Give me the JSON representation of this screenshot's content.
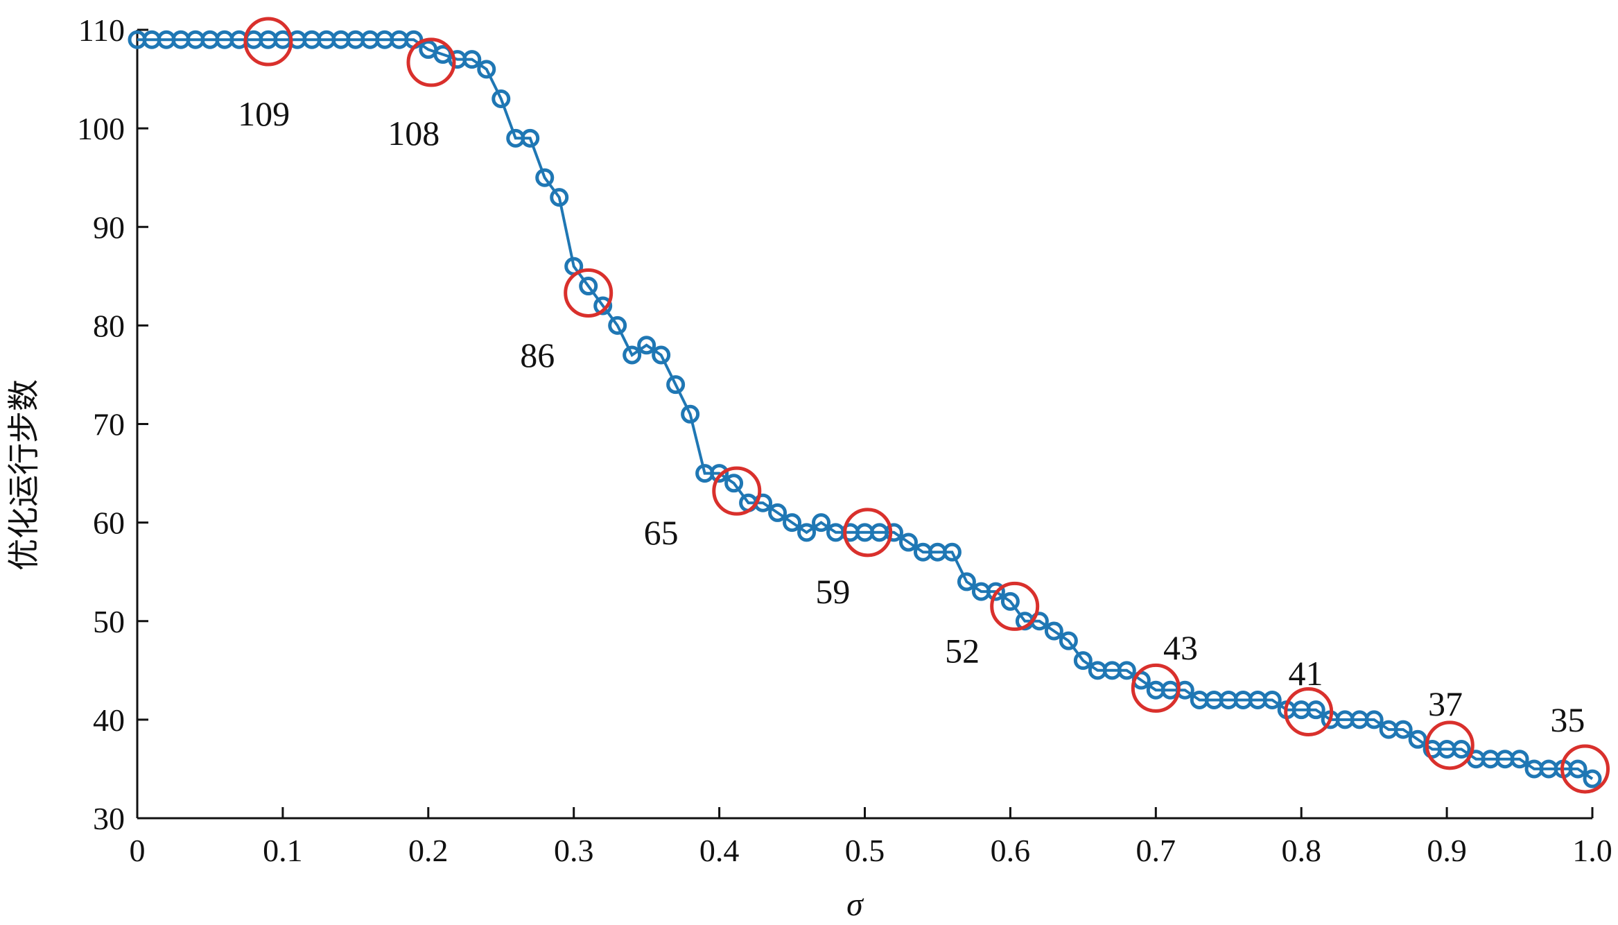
{
  "chart_data": {
    "type": "line",
    "xlabel": "σ",
    "ylabel": "优化运行步数",
    "xlim": [
      0,
      1.0
    ],
    "ylim": [
      30,
      110
    ],
    "xticks": [
      0,
      0.1,
      0.2,
      0.3,
      0.4,
      0.5,
      0.6,
      0.7,
      0.8,
      0.9,
      1.0
    ],
    "xtick_labels": [
      "0",
      "0.1",
      "0.2",
      "0.3",
      "0.4",
      "0.5",
      "0.6",
      "0.7",
      "0.8",
      "0.9",
      "1.0"
    ],
    "yticks": [
      30,
      40,
      50,
      60,
      70,
      80,
      90,
      100,
      110
    ],
    "ytick_labels": [
      "30",
      "40",
      "50",
      "60",
      "70",
      "80",
      "90",
      "100",
      "110"
    ],
    "grid": false,
    "series": [
      {
        "color": "#1f77b4",
        "marker": "circle",
        "x": [
          0,
          0.01,
          0.02,
          0.03,
          0.04,
          0.05,
          0.06,
          0.07,
          0.08,
          0.09,
          0.1,
          0.11,
          0.12,
          0.13,
          0.14,
          0.15,
          0.16,
          0.17,
          0.18,
          0.19,
          0.2,
          0.21,
          0.22,
          0.23,
          0.24,
          0.25,
          0.26,
          0.27,
          0.28,
          0.29,
          0.3,
          0.31,
          0.32,
          0.33,
          0.34,
          0.35,
          0.36,
          0.37,
          0.38,
          0.39,
          0.4,
          0.41,
          0.42,
          0.43,
          0.44,
          0.45,
          0.46,
          0.47,
          0.48,
          0.49,
          0.5,
          0.51,
          0.52,
          0.53,
          0.54,
          0.55,
          0.56,
          0.57,
          0.58,
          0.59,
          0.6,
          0.61,
          0.62,
          0.63,
          0.64,
          0.65,
          0.66,
          0.67,
          0.68,
          0.69,
          0.7,
          0.71,
          0.72,
          0.73,
          0.74,
          0.75,
          0.76,
          0.77,
          0.78,
          0.79,
          0.8,
          0.81,
          0.82,
          0.83,
          0.84,
          0.85,
          0.86,
          0.87,
          0.88,
          0.89,
          0.9,
          0.91,
          0.92,
          0.93,
          0.94,
          0.95,
          0.96,
          0.97,
          0.98,
          0.99,
          1.0
        ],
        "y": [
          109,
          109,
          109,
          109,
          109,
          109,
          109,
          109,
          109,
          109,
          109,
          109,
          109,
          109,
          109,
          109,
          109,
          109,
          109,
          109,
          108,
          107.5,
          107,
          107,
          106,
          103,
          99,
          99,
          95,
          93,
          86,
          84,
          82,
          80,
          77,
          78,
          77,
          74,
          71,
          65,
          65,
          64,
          62,
          62,
          61,
          60,
          59,
          60,
          59,
          59,
          59,
          59,
          59,
          58,
          57,
          57,
          57,
          54,
          53,
          53,
          52,
          50,
          50,
          49,
          48,
          46,
          45,
          45,
          45,
          44,
          43,
          43,
          43,
          42,
          42,
          42,
          42,
          42,
          42,
          41,
          41,
          41,
          40,
          40,
          40,
          40,
          39,
          39,
          38,
          37,
          37,
          37,
          36,
          36,
          36,
          36,
          35,
          35,
          35,
          35,
          34
        ]
      }
    ],
    "highlights": [
      {
        "x": 0.09,
        "y": 108.8,
        "label": "109",
        "label_x": 0.087,
        "label_y": 101.5
      },
      {
        "x": 0.202,
        "y": 106.7,
        "label": "108",
        "label_x": 0.19,
        "label_y": 99.5
      },
      {
        "x": 0.31,
        "y": 83.3,
        "label": "86",
        "label_x": 0.275,
        "label_y": 77.0
      },
      {
        "x": 0.412,
        "y": 63.2,
        "label": "65",
        "label_x": 0.36,
        "label_y": 59.0
      },
      {
        "x": 0.502,
        "y": 59.0,
        "label": "59",
        "label_x": 0.478,
        "label_y": 53.0
      },
      {
        "x": 0.603,
        "y": 51.5,
        "label": "52",
        "label_x": 0.567,
        "label_y": 47.0
      },
      {
        "x": 0.7,
        "y": 43.2,
        "label": "43",
        "label_x": 0.717,
        "label_y": 47.3
      },
      {
        "x": 0.805,
        "y": 40.8,
        "label": "41",
        "label_x": 0.803,
        "label_y": 44.7
      },
      {
        "x": 0.902,
        "y": 37.4,
        "label": "37",
        "label_x": 0.899,
        "label_y": 41.6
      },
      {
        "x": 0.995,
        "y": 35.0,
        "label": "35",
        "label_x": 0.983,
        "label_y": 40.0
      }
    ],
    "highlight_color": "#d9302c"
  }
}
